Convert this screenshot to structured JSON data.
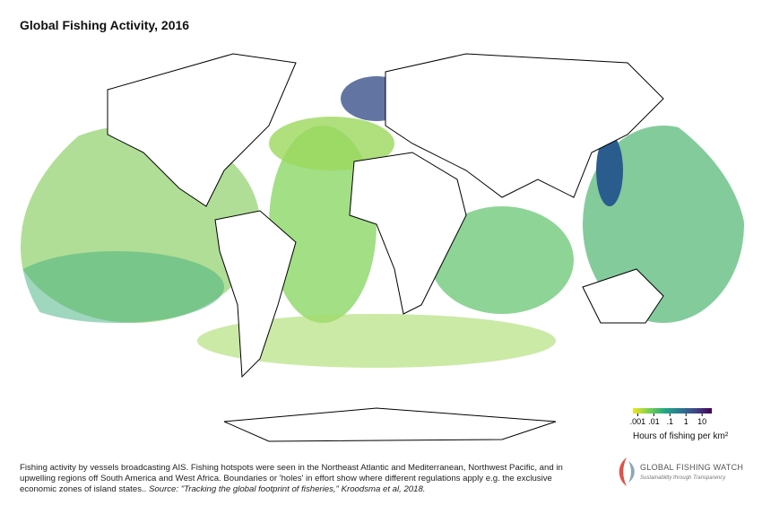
{
  "title": "Global Fishing Activity, 2016",
  "legend": {
    "title": "Hours of fishing per km²",
    "log": true,
    "lim": [
      0.0005,
      40
    ],
    "colors": [
      "#f2e51d",
      "#7ad151",
      "#22a884",
      "#2a788e",
      "#414487",
      "#440154"
    ],
    "ticks": [
      {
        "value": 0.001,
        "label": ".001"
      },
      {
        "value": 0.01,
        "label": ".01"
      },
      {
        "value": 0.1,
        "label": ".1"
      },
      1,
      10
    ]
  },
  "caption": {
    "text": "Fishing activity by vessels broadcasting AIS. Fishing hotspots were seen in the Northeast Atlantic and Mediterranean, Northwest Pacific, and in upwelling regions off South America and West Africa. Boundaries or 'holes' in effort show where different regulations apply e.g. the exclusive economic zones of island states..",
    "source": "Source: \"Tracking the global footprint of fisheries,\" Kroodsma et al, 2018."
  },
  "logo": {
    "name": "GLOBAL FISHING WATCH",
    "tagline": "Sustainability through Transparency"
  }
}
